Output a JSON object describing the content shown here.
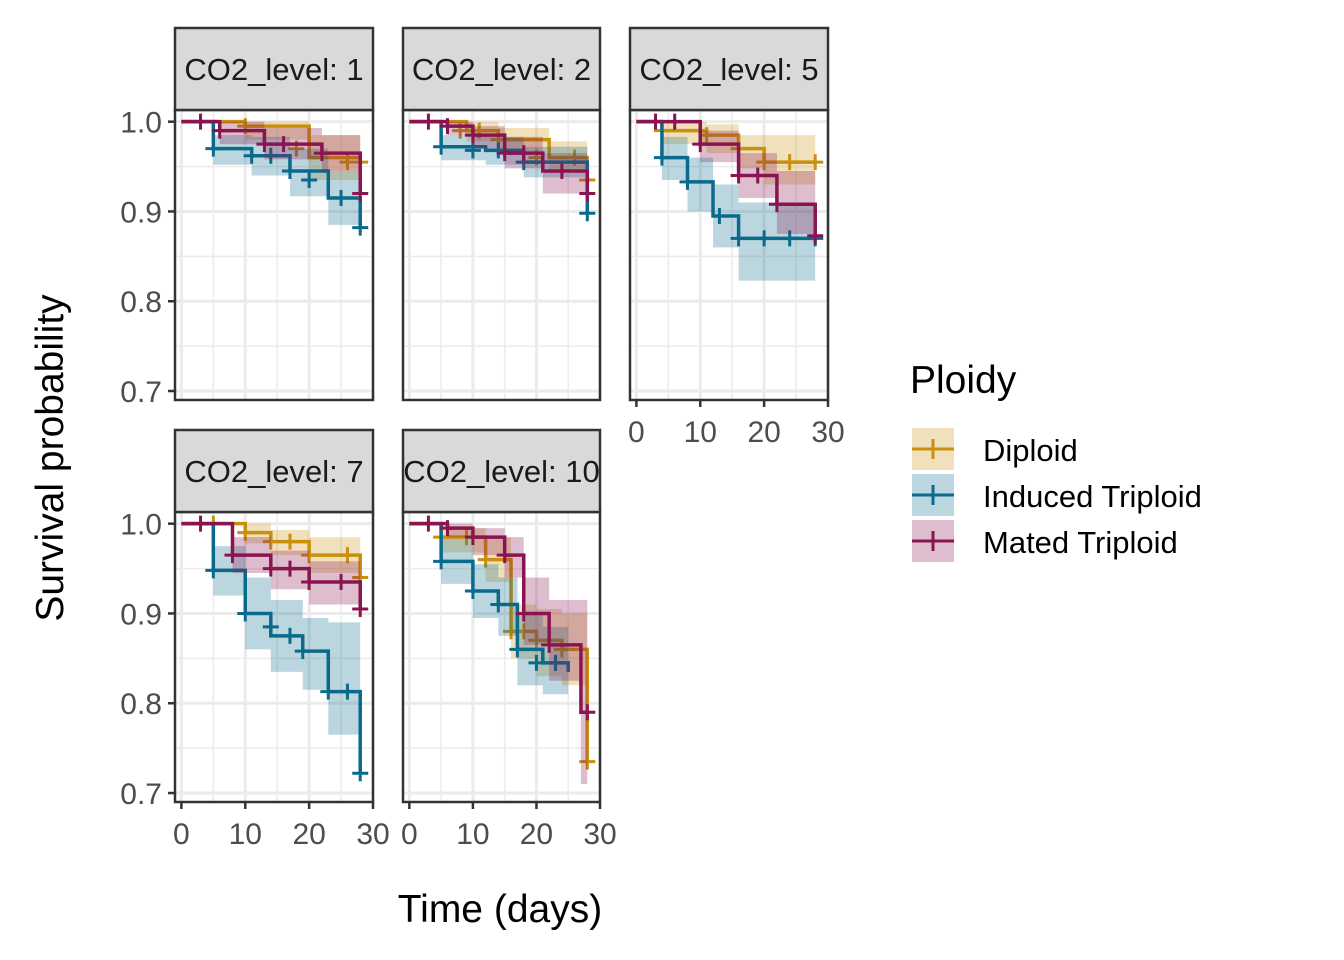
{
  "chart_data": {
    "type": "line",
    "subtype": "kaplan-meier step plot, faceted",
    "xlabel": "Time (days)",
    "ylabel": "Survival probability",
    "xlim": [
      -1,
      30
    ],
    "ylim": [
      0.69,
      1.013
    ],
    "x_ticks": [
      0,
      10,
      20,
      30
    ],
    "y_ticks": [
      0.7,
      0.8,
      0.9,
      1.0
    ],
    "y_tick_labels": [
      "0.7",
      "0.8",
      "0.9",
      "1.0"
    ],
    "grid": true,
    "legend": {
      "title": "Ploidy",
      "position": "right",
      "entries": [
        "Diploid",
        "Induced Triploid",
        "Mated Triploid"
      ]
    },
    "colors": {
      "Diploid": "#c8900c",
      "Induced Triploid": "#0a6a8c",
      "Mated Triploid": "#8a1450"
    },
    "panels": [
      {
        "strip": "CO2_level: 1",
        "series": [
          {
            "name": "Diploid",
            "x": [
              0,
              10,
              20,
              28
            ],
            "y": [
              1.0,
              0.995,
              0.96,
              0.955
            ],
            "ci_low": [
              1.0,
              0.98,
              0.935,
              0.93
            ],
            "ci_high": [
              1.0,
              1.0,
              0.985,
              0.98
            ],
            "censor_x": [
              10,
              18,
              26,
              28
            ],
            "censor_y": [
              0.995,
              0.97,
              0.955,
              0.955
            ]
          },
          {
            "name": "Induced Triploid",
            "x": [
              0,
              5,
              11,
              17,
              23,
              28
            ],
            "y": [
              1.0,
              0.97,
              0.962,
              0.945,
              0.915,
              0.882
            ],
            "ci_low": [
              1.0,
              0.952,
              0.94,
              0.917,
              0.885,
              0.875
            ],
            "ci_high": [
              1.0,
              0.985,
              0.983,
              0.97,
              0.945,
              0.94
            ],
            "censor_x": [
              5,
              11,
              14,
              17,
              20,
              25,
              28
            ],
            "censor_y": [
              0.97,
              0.962,
              0.962,
              0.945,
              0.935,
              0.915,
              0.882
            ]
          },
          {
            "name": "Mated Triploid",
            "x": [
              0,
              6,
              13,
              22,
              28
            ],
            "y": [
              1.0,
              0.99,
              0.975,
              0.965,
              0.92
            ],
            "ci_low": [
              1.0,
              0.975,
              0.958,
              0.945,
              0.91
            ],
            "ci_high": [
              1.0,
              1.0,
              0.993,
              0.985,
              0.975
            ],
            "censor_x": [
              3,
              6,
              13,
              16,
              22,
              28
            ],
            "censor_y": [
              1.0,
              0.99,
              0.975,
              0.975,
              0.965,
              0.92
            ]
          }
        ]
      },
      {
        "strip": "CO2_level: 2",
        "series": [
          {
            "name": "Diploid",
            "x": [
              0,
              9,
              14,
              22,
              28
            ],
            "y": [
              1.0,
              0.99,
              0.98,
              0.96,
              0.935
            ],
            "ci_low": [
              1.0,
              0.978,
              0.965,
              0.945,
              0.935
            ],
            "ci_high": [
              1.0,
              1.0,
              0.993,
              0.978,
              0.975
            ],
            "censor_x": [
              8,
              11,
              14,
              20,
              26,
              28
            ],
            "censor_y": [
              0.99,
              0.99,
              0.98,
              0.96,
              0.96,
              0.935
            ]
          },
          {
            "name": "Induced Triploid",
            "x": [
              0,
              5,
              12,
              18,
              28
            ],
            "y": [
              1.0,
              0.972,
              0.968,
              0.955,
              0.898
            ],
            "ci_low": [
              1.0,
              0.957,
              0.952,
              0.938,
              0.925
            ],
            "ci_high": [
              1.0,
              0.985,
              0.983,
              0.972,
              0.968
            ],
            "censor_x": [
              5,
              10,
              14,
              18,
              21,
              28
            ],
            "censor_y": [
              0.972,
              0.968,
              0.968,
              0.955,
              0.955,
              0.898
            ]
          },
          {
            "name": "Mated Triploid",
            "x": [
              0,
              6,
              10,
              15,
              21,
              28
            ],
            "y": [
              1.0,
              0.995,
              0.985,
              0.965,
              0.945,
              0.92
            ],
            "ci_low": [
              1.0,
              0.985,
              0.97,
              0.948,
              0.92,
              0.92
            ],
            "ci_high": [
              1.0,
              1.0,
              0.995,
              0.983,
              0.965,
              0.96
            ],
            "censor_x": [
              3,
              6,
              10,
              15,
              18,
              24,
              28
            ],
            "censor_y": [
              1.0,
              0.995,
              0.985,
              0.965,
              0.965,
              0.945,
              0.92
            ]
          }
        ]
      },
      {
        "strip": "CO2_level: 5",
        "series": [
          {
            "name": "Diploid",
            "x": [
              0,
              4,
              11,
              16,
              20,
              28
            ],
            "y": [
              1.0,
              0.99,
              0.985,
              0.97,
              0.955,
              0.955
            ],
            "ci_low": [
              1.0,
              0.975,
              0.965,
              0.948,
              0.93,
              0.93
            ],
            "ci_high": [
              1.0,
              1.0,
              0.997,
              0.985,
              0.985,
              0.985
            ],
            "censor_x": [
              4,
              11,
              16,
              20,
              24,
              28
            ],
            "censor_y": [
              0.99,
              0.985,
              0.97,
              0.955,
              0.955,
              0.955
            ]
          },
          {
            "name": "Induced Triploid",
            "x": [
              0,
              4,
              8,
              12,
              16,
              28
            ],
            "y": [
              1.0,
              0.96,
              0.933,
              0.895,
              0.87,
              0.87
            ],
            "ci_low": [
              1.0,
              0.935,
              0.9,
              0.86,
              0.823,
              0.823
            ],
            "ci_high": [
              1.0,
              0.983,
              0.96,
              0.93,
              0.91,
              0.91
            ],
            "censor_x": [
              4,
              8,
              13,
              16,
              20,
              24,
              28
            ],
            "censor_y": [
              0.96,
              0.933,
              0.895,
              0.87,
              0.87,
              0.87,
              0.87
            ]
          },
          {
            "name": "Mated Triploid",
            "x": [
              0,
              10,
              16,
              22,
              28
            ],
            "y": [
              1.0,
              0.975,
              0.94,
              0.908,
              0.873
            ],
            "ci_low": [
              1.0,
              0.955,
              0.915,
              0.875,
              0.87
            ],
            "ci_high": [
              1.0,
              0.99,
              0.965,
              0.945,
              0.93
            ],
            "censor_x": [
              3,
              6,
              10,
              16,
              19,
              22,
              28
            ],
            "censor_y": [
              1.0,
              1.0,
              0.975,
              0.94,
              0.94,
              0.908,
              0.873
            ]
          }
        ]
      },
      {
        "strip": "CO2_level: 7",
        "series": [
          {
            "name": "Diploid",
            "x": [
              0,
              10,
              14,
              20,
              28
            ],
            "y": [
              1.0,
              0.99,
              0.98,
              0.965,
              0.94
            ],
            "ci_low": [
              1.0,
              0.978,
              0.965,
              0.945,
              0.945
            ],
            "ci_high": [
              1.0,
              1.0,
              0.993,
              0.985,
              0.985
            ],
            "censor_x": [
              5,
              10,
              14,
              17,
              20,
              26,
              28
            ],
            "censor_y": [
              1.0,
              0.99,
              0.98,
              0.98,
              0.965,
              0.965,
              0.94
            ]
          },
          {
            "name": "Induced Triploid",
            "x": [
              0,
              5,
              10,
              14,
              19,
              23,
              28
            ],
            "y": [
              1.0,
              0.948,
              0.9,
              0.875,
              0.858,
              0.813,
              0.722
            ],
            "ci_low": [
              1.0,
              0.92,
              0.86,
              0.835,
              0.815,
              0.765,
              0.765
            ],
            "ci_high": [
              1.0,
              0.975,
              0.94,
              0.915,
              0.895,
              0.89,
              0.89
            ],
            "censor_x": [
              5,
              10,
              14,
              17,
              19,
              23,
              26,
              28
            ],
            "censor_y": [
              0.948,
              0.9,
              0.885,
              0.875,
              0.858,
              0.813,
              0.813,
              0.722
            ]
          },
          {
            "name": "Mated Triploid",
            "x": [
              0,
              8,
              14,
              20,
              28
            ],
            "y": [
              1.0,
              0.965,
              0.95,
              0.935,
              0.905
            ],
            "ci_low": [
              1.0,
              0.945,
              0.927,
              0.91,
              0.905
            ],
            "ci_high": [
              1.0,
              0.985,
              0.97,
              0.958,
              0.955
            ],
            "censor_x": [
              3,
              8,
              14,
              17,
              20,
              25,
              28
            ],
            "censor_y": [
              1.0,
              0.965,
              0.95,
              0.95,
              0.935,
              0.935,
              0.905
            ]
          }
        ]
      },
      {
        "strip": "CO2_level: 10",
        "series": [
          {
            "name": "Diploid",
            "x": [
              0,
              5,
              12,
              16,
              20,
              24,
              28
            ],
            "y": [
              1.0,
              0.985,
              0.96,
              0.88,
              0.87,
              0.86,
              0.735
            ],
            "ci_low": [
              1.0,
              0.968,
              0.935,
              0.85,
              0.83,
              0.82,
              0.72
            ],
            "ci_high": [
              1.0,
              0.995,
              0.985,
              0.91,
              0.905,
              0.9,
              0.9
            ],
            "censor_x": [
              5,
              9,
              12,
              16,
              18,
              20,
              24,
              28
            ],
            "censor_y": [
              0.985,
              0.985,
              0.96,
              0.88,
              0.88,
              0.87,
              0.86,
              0.735
            ]
          },
          {
            "name": "Induced Triploid",
            "x": [
              0,
              5,
              10,
              14,
              17,
              21,
              25
            ],
            "y": [
              1.0,
              0.958,
              0.925,
              0.91,
              0.86,
              0.845,
              0.835
            ],
            "ci_low": [
              1.0,
              0.933,
              0.895,
              0.875,
              0.82,
              0.81,
              0.79
            ],
            "ci_high": [
              1.0,
              0.983,
              0.955,
              0.94,
              0.9,
              0.885,
              0.885
            ],
            "censor_x": [
              5,
              10,
              14,
              17,
              20,
              23
            ],
            "censor_y": [
              0.958,
              0.925,
              0.91,
              0.86,
              0.845,
              0.845
            ]
          },
          {
            "name": "Mated Triploid",
            "x": [
              0,
              6,
              10,
              15,
              18,
              22,
              27
            ],
            "y": [
              1.0,
              0.995,
              0.985,
              0.965,
              0.9,
              0.865,
              0.79
            ],
            "ci_low": [
              1.0,
              0.985,
              0.965,
              0.94,
              0.865,
              0.825,
              0.71
            ],
            "ci_high": [
              1.0,
              1.0,
              0.995,
              0.985,
              0.94,
              0.915,
              0.915
            ],
            "censor_x": [
              3,
              6,
              10,
              15,
              18,
              22,
              28
            ],
            "censor_y": [
              1.0,
              0.995,
              0.985,
              0.965,
              0.9,
              0.865,
              0.79
            ]
          }
        ]
      }
    ]
  }
}
